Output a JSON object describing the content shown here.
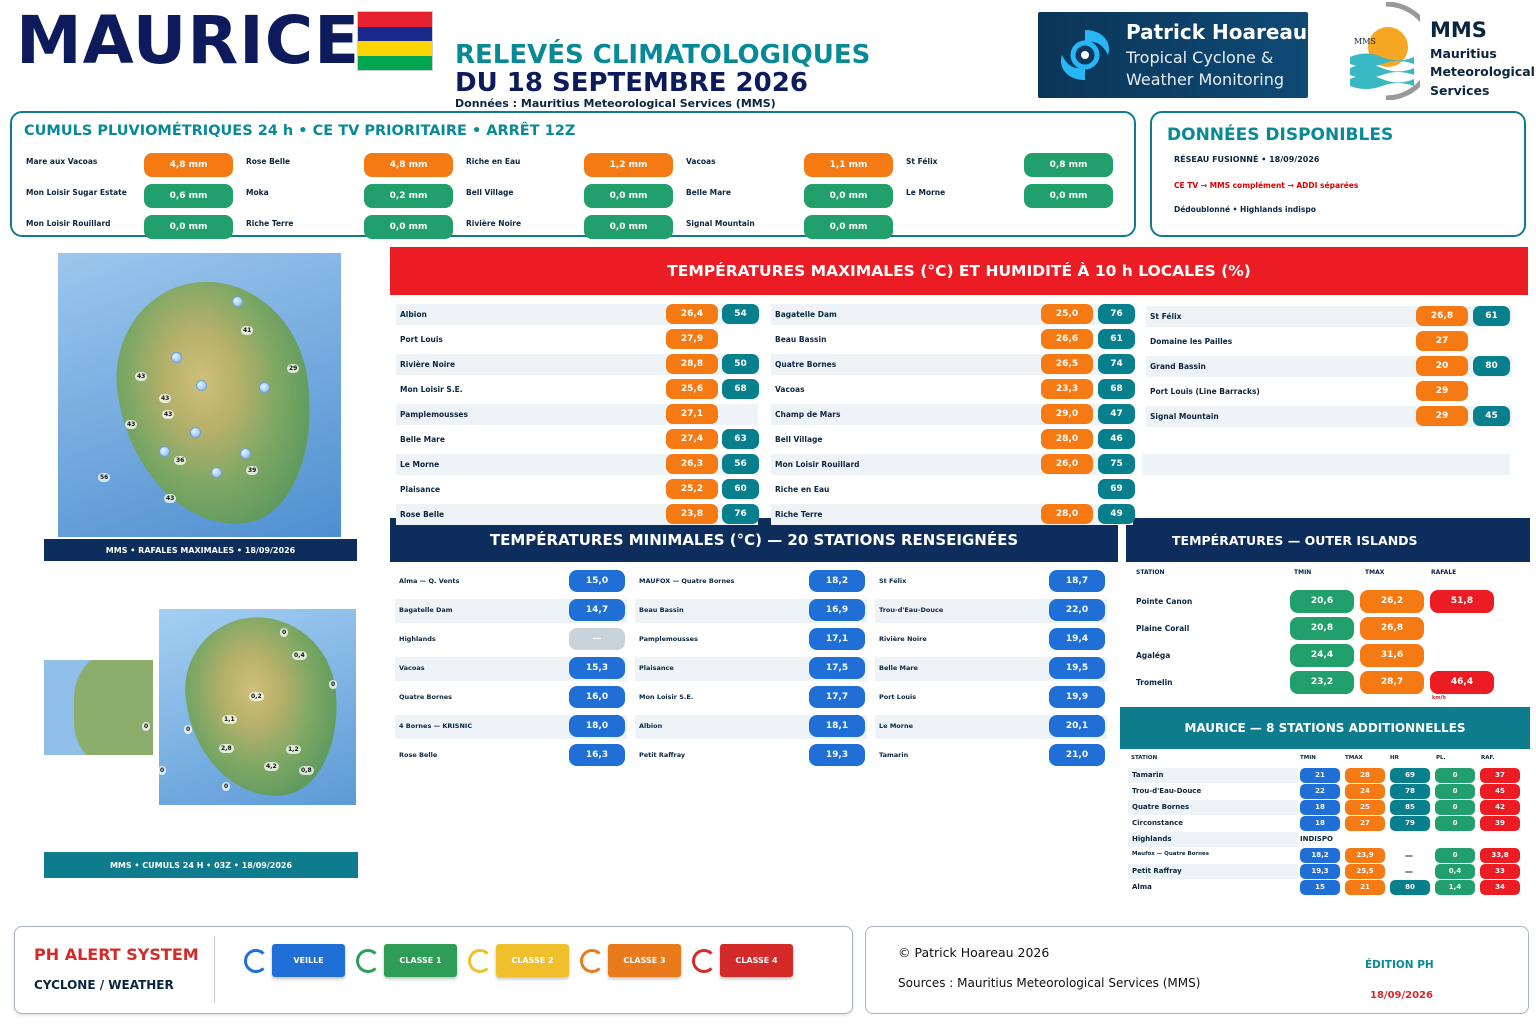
{
  "header": {
    "country": "MAURICE",
    "title1": "RELEVÉS CLIMATOLOGIQUES",
    "title2": "DU 18 SEPTEMBRE 2026",
    "source": "Données : Mauritius Meteorological Services (MMS)",
    "ph_name": "Patrick Hoareau",
    "ph_sub1": "Tropical Cyclone &",
    "ph_sub2": "Weather Monitoring",
    "mms_abbr": "MMS",
    "mms_l1": "Mauritius",
    "mms_l2": "Meteorological",
    "mms_l3": "Services",
    "mms_logo_text": "MMS"
  },
  "rain": {
    "title": "CUMULS PLUVIOMÉTRIQUES 24 h • CE TV PRIORITAIRE • ARRÊT 12Z",
    "items": [
      {
        "name": "Mare aux Vacoas",
        "value": "4,8 mm",
        "color": "o"
      },
      {
        "name": "Rose Belle",
        "value": "4,8 mm",
        "color": "o"
      },
      {
        "name": "Riche en Eau",
        "value": "1,2 mm",
        "color": "o"
      },
      {
        "name": "Vacoas",
        "value": "1,1 mm",
        "color": "o"
      },
      {
        "name": "St Félix",
        "value": "0,8 mm",
        "color": "g"
      },
      {
        "name": "Mon Loisir Sugar Estate",
        "value": "0,6 mm",
        "color": "g"
      },
      {
        "name": "Moka",
        "value": "0,2 mm",
        "color": "g"
      },
      {
        "name": "Bell Village",
        "value": "0,0 mm",
        "color": "g"
      },
      {
        "name": "Belle Mare",
        "value": "0,0 mm",
        "color": "g"
      },
      {
        "name": "Le Morne",
        "value": "0,0 mm",
        "color": "g"
      },
      {
        "name": "Mon Loisir Rouillard",
        "value": "0,0 mm",
        "color": "g"
      },
      {
        "name": "Riche Terre",
        "value": "0,0 mm",
        "color": "g"
      },
      {
        "name": "Rivière Noire",
        "value": "0,0 mm",
        "color": "g"
      },
      {
        "name": "Signal Mountain",
        "value": "0,0 mm",
        "color": "g"
      }
    ]
  },
  "dispo": {
    "title": "DONNÉES DISPONIBLES",
    "l1": "RÉSEAU FUSIONNÉ • 18/09/2026",
    "l2": "CE TV → MMS complément → ADDI séparées",
    "l3": "Dédoublonné • Highlands indispo"
  },
  "tmax": {
    "title": "TEMPÉRATURES MAXIMALES (°C) ET HUMIDITÉ À 10 h LOCALES (%)",
    "col1": [
      {
        "name": "Albion",
        "t": "26,4",
        "h": "54"
      },
      {
        "name": "Port Louis",
        "t": "27,9",
        "h": ""
      },
      {
        "name": "Rivière Noire",
        "t": "28,8",
        "h": "50"
      },
      {
        "name": "Mon Loisir S.E.",
        "t": "25,6",
        "h": "68"
      },
      {
        "name": "Pamplemousses",
        "t": "27,1",
        "h": ""
      },
      {
        "name": "Belle Mare",
        "t": "27,4",
        "h": "63"
      },
      {
        "name": "Le Morne",
        "t": "26,3",
        "h": "56"
      },
      {
        "name": "Plaisance",
        "t": "25,2",
        "h": "60"
      },
      {
        "name": "Rose Belle",
        "t": "23,8",
        "h": "76"
      }
    ],
    "col2": [
      {
        "name": "Bagatelle Dam",
        "t": "25,0",
        "h": "76"
      },
      {
        "name": "Beau Bassin",
        "t": "26,6",
        "h": "61"
      },
      {
        "name": "Quatre Bornes",
        "t": "26,5",
        "h": "74"
      },
      {
        "name": "Vacoas",
        "t": "23,3",
        "h": "68"
      },
      {
        "name": "Champ de Mars",
        "t": "29,0",
        "h": "47"
      },
      {
        "name": "Bell Village",
        "t": "28,0",
        "h": "46"
      },
      {
        "name": "Mon Loisir Rouillard",
        "t": "26,0",
        "h": "75"
      },
      {
        "name": "Riche en Eau",
        "t": "",
        "h": "69"
      },
      {
        "name": "Riche Terre",
        "t": "28,0",
        "h": "49"
      }
    ],
    "col3": [
      {
        "name": "St Félix",
        "t": "26,8",
        "h": "61"
      },
      {
        "name": "Domaine les Pailles",
        "t": "27",
        "h": ""
      },
      {
        "name": "Grand Bassin",
        "t": "20",
        "h": "80"
      },
      {
        "name": "Port Louis (Line Barracks)",
        "t": "29",
        "h": ""
      },
      {
        "name": "Signal Mountain",
        "t": "29",
        "h": "45"
      }
    ]
  },
  "tmin": {
    "title": "TEMPÉRATURES MINIMALES (°C) — 20 STATIONS RENSEIGNÉES",
    "col1": [
      {
        "name": "Alma — Q. Vents",
        "v": "15,0"
      },
      {
        "name": "Bagatelle Dam",
        "v": "14,7"
      },
      {
        "name": "Highlands",
        "v": "—"
      },
      {
        "name": "Vacoas",
        "v": "15,3"
      },
      {
        "name": "Quatre Bornes",
        "v": "16,0"
      },
      {
        "name": "4 Bornes — KRISNIC",
        "v": "18,0"
      },
      {
        "name": "Rose Belle",
        "v": "16,3"
      }
    ],
    "col2": [
      {
        "name": "MAUFOX — Quatre Bornes",
        "v": "18,2"
      },
      {
        "name": "Beau Bassin",
        "v": "16,9"
      },
      {
        "name": "Pamplemousses",
        "v": "17,1"
      },
      {
        "name": "Plaisance",
        "v": "17,5"
      },
      {
        "name": "Mon Loisir S.E.",
        "v": "17,7"
      },
      {
        "name": "Albion",
        "v": "18,1"
      },
      {
        "name": "Petit Raffray",
        "v": "19,3"
      }
    ],
    "col3": [
      {
        "name": "St Félix",
        "v": "18,7"
      },
      {
        "name": "Trou-d'Eau-Douce",
        "v": "22,0"
      },
      {
        "name": "Rivière Noire",
        "v": "19,4"
      },
      {
        "name": "Belle Mare",
        "v": "19,5"
      },
      {
        "name": "Port Louis",
        "v": "19,9"
      },
      {
        "name": "Le Morne",
        "v": "20,1"
      },
      {
        "name": "Tamarin",
        "v": "21,0"
      }
    ]
  },
  "outer": {
    "title": "TEMPÉRATURES — OUTER ISLANDS",
    "h_station": "STATION",
    "h_tmin": "TMIN",
    "h_tmax": "TMAX",
    "h_rafale": "RAFALE",
    "rows": [
      {
        "name": "Pointe Canon",
        "tmin": "20,6",
        "tmax": "26,2",
        "raf": "51,8",
        "note": ""
      },
      {
        "name": "Plaine Corail",
        "tmin": "20,8",
        "tmax": "26,8",
        "raf": "",
        "note": ""
      },
      {
        "name": "Agaléga",
        "tmin": "24,4",
        "tmax": "31,6",
        "raf": "",
        "note": ""
      },
      {
        "name": "Tromelin",
        "tmin": "23,2",
        "tmax": "28,7",
        "raf": "46,4",
        "note": "km/h"
      }
    ]
  },
  "add": {
    "title": "MAURICE — 8 STATIONS ADDITIONNELLES",
    "h_station": "STATION",
    "h_tmin": "TMIN",
    "h_tmax": "TMAX",
    "h_hr": "HR",
    "h_pl": "PL.",
    "h_raf": "RAF.",
    "rows": [
      {
        "name": "Tamarin",
        "tmin": "21",
        "tmax": "28",
        "hr": "69",
        "pl": "0",
        "raf": "37"
      },
      {
        "name": "Trou-d'Eau-Douce",
        "tmin": "22",
        "tmax": "24",
        "hr": "78",
        "pl": "0",
        "raf": "45"
      },
      {
        "name": "Quatre Bornes",
        "tmin": "18",
        "tmax": "25",
        "hr": "85",
        "pl": "0",
        "raf": "42"
      },
      {
        "name": "Circonstance",
        "tmin": "18",
        "tmax": "27",
        "hr": "79",
        "pl": "0",
        "raf": "39"
      },
      {
        "name": "Highlands",
        "tmin": "INDISPO",
        "tmax": "",
        "hr": "",
        "pl": "",
        "raf": ""
      },
      {
        "name": "Maufox — Quatre Bornes",
        "tmin": "18,2",
        "tmax": "23,9",
        "hr": "—",
        "pl": "0",
        "raf": "33,8"
      },
      {
        "name": "Petit Raffray",
        "tmin": "19,3",
        "tmax": "25,5",
        "hr": "—",
        "pl": "0,4",
        "raf": "33"
      },
      {
        "name": "Alma",
        "tmin": "15",
        "tmax": "21",
        "hr": "80",
        "pl": "1,4",
        "raf": "34"
      }
    ]
  },
  "map1": {
    "caption": "MMS • RAFALES MAXIMALES • 18/09/2026",
    "labels": [
      "41",
      "29",
      "43",
      "43",
      "43",
      "43",
      "56",
      "36",
      "39",
      "43"
    ]
  },
  "map2": {
    "caption": "MMS • CUMULS 24 H • 03Z • 18/09/2026",
    "labels": [
      "0",
      "0,4",
      "0",
      "0,2",
      "0",
      "1,1",
      "0",
      "0",
      "2,8",
      "1,2",
      "4,2",
      "0",
      "0,8"
    ]
  },
  "alert": {
    "title": "PH ALERT SYSTEM",
    "sub": "CYCLONE / WEATHER",
    "levels": [
      {
        "label": "VEILLE",
        "color": "#1f6fd6"
      },
      {
        "label": "CLASSE 1",
        "color": "#2e9e57"
      },
      {
        "label": "CLASSE 2",
        "color": "#f0c02c"
      },
      {
        "label": "CLASSE 3",
        "color": "#ea7b1c"
      },
      {
        "label": "CLASSE 4",
        "color": "#d42a2a"
      }
    ]
  },
  "footer": {
    "copyright": "© Patrick Hoareau 2026",
    "sources": "Sources : Mauritius Meteorological Services (MMS)",
    "edition": "ÉDITION PH",
    "date": "18/09/2026"
  }
}
